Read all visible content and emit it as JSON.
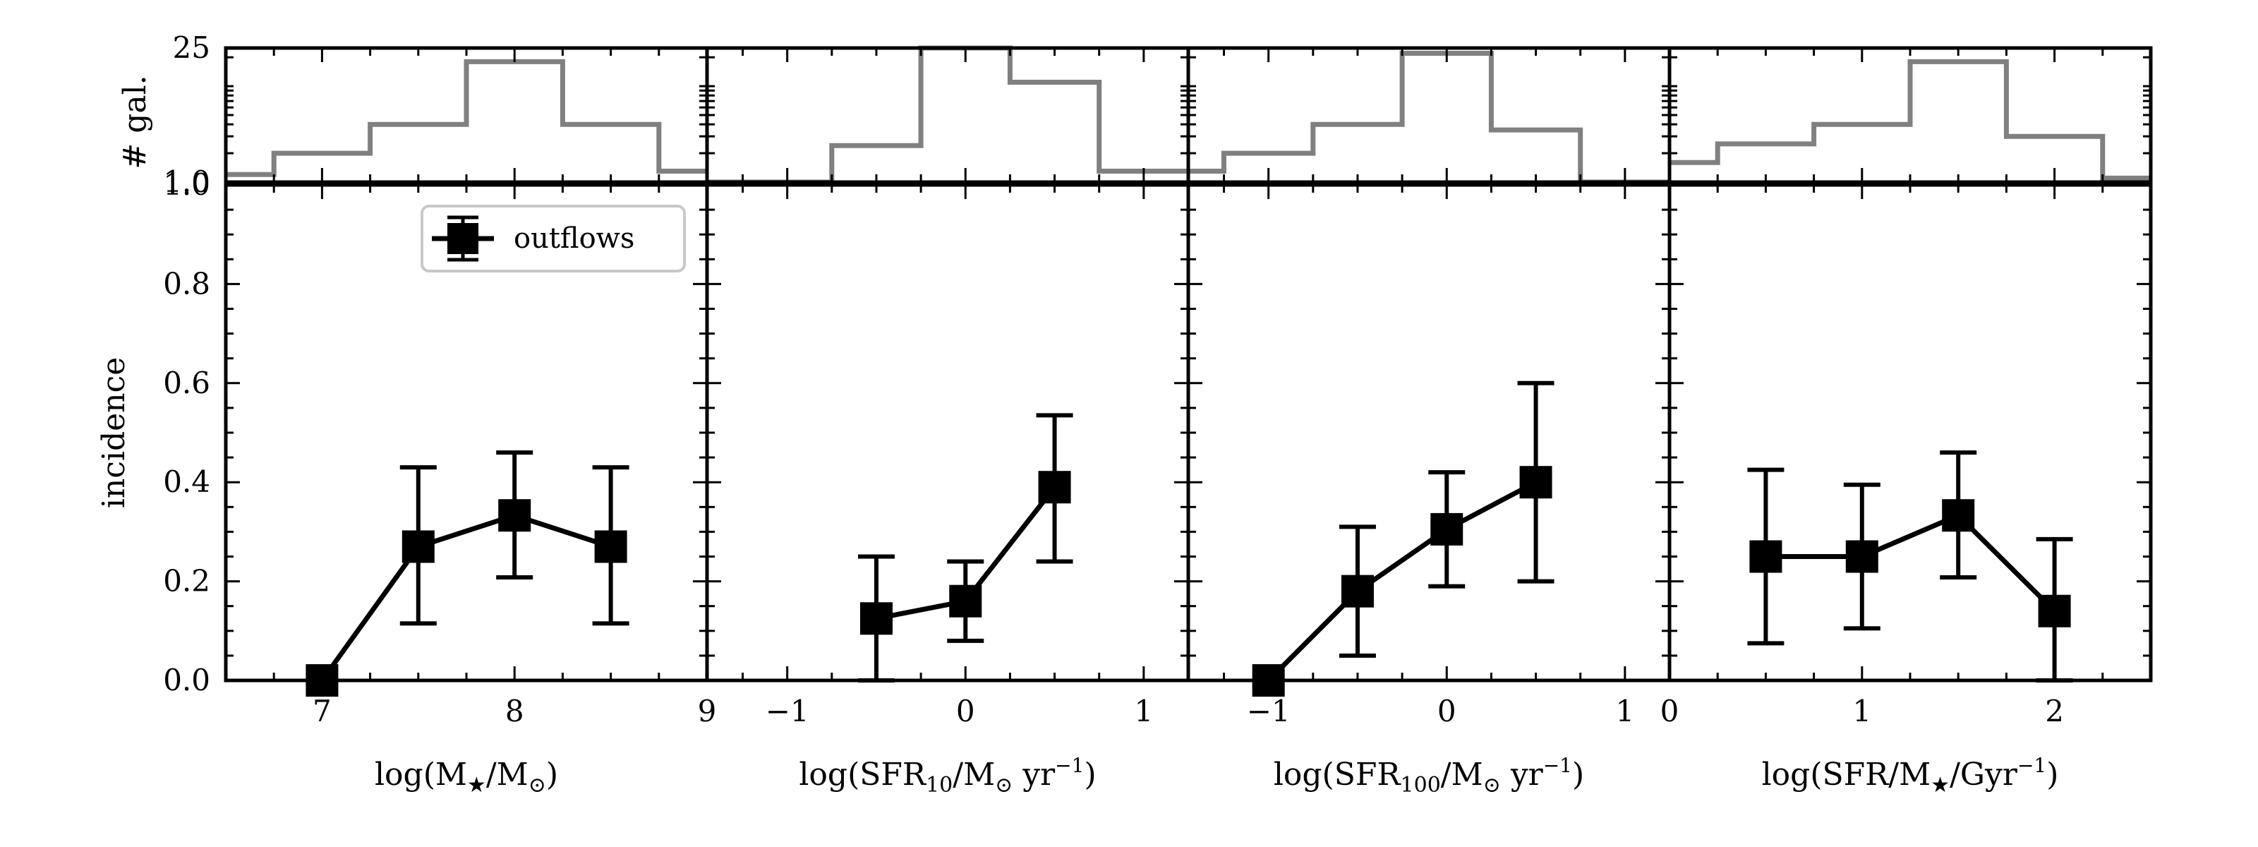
{
  "chart_data": {
    "type": "line",
    "shared_y": {
      "main_label": "incidence",
      "main_ylim": [
        0,
        1.0
      ],
      "main_ticks": [
        "0.0",
        "0.2",
        "0.4",
        "0.6",
        "0.8",
        "1.0"
      ],
      "hist_label": "# gal.",
      "hist_ylim": [
        1.0,
        25
      ],
      "hist_ticks": [
        "1.0",
        "25"
      ],
      "hist_scale": "log"
    },
    "legend": {
      "entry": "outflows",
      "placement": "top-right"
    },
    "colors": {
      "series": "#000000",
      "histogram": "#808080"
    },
    "panels": [
      {
        "xlabel_main": "log(M",
        "xlabel_sub": "★",
        "xlabel_mid": "/M",
        "xlabel_sub2": "⊙",
        "xlabel_end": ")",
        "xlim": [
          6.5,
          9.0
        ],
        "xticks": [
          7,
          8,
          9
        ],
        "xtick_labels": [
          "7",
          "8",
          "9"
        ],
        "series": {
          "name": "outflows",
          "x": [
            7.0,
            7.5,
            8.0,
            8.5
          ],
          "y": [
            0.0,
            0.27,
            0.333,
            0.27
          ],
          "yerr_low": [
            0.0,
            0.155,
            0.125,
            0.155
          ],
          "yerr_high": [
            0.0,
            0.16,
            0.127,
            0.16
          ]
        },
        "histogram": {
          "edges": [
            6.5,
            6.75,
            7.25,
            7.75,
            8.25,
            8.75,
            9.0
          ],
          "counts": [
            1.2,
            2,
            4,
            18,
            4,
            1.3
          ]
        }
      },
      {
        "xlabel_main": "log(SFR",
        "xlabel_sub": "10",
        "xlabel_mid": "/M",
        "xlabel_sub2": "⊙",
        "xlabel_end": " yr",
        "xlabel_sup": "−1",
        "xlabel_close": ")",
        "xlim": [
          -1.45,
          1.25
        ],
        "xticks": [
          -1,
          0,
          1
        ],
        "xtick_labels": [
          "−1",
          "0",
          "1"
        ],
        "series": {
          "name": "outflows",
          "x": [
            -0.5,
            0.0,
            0.5
          ],
          "y": [
            0.125,
            0.16,
            0.39
          ],
          "yerr_low": [
            0.125,
            0.08,
            0.15
          ],
          "yerr_high": [
            0.125,
            0.08,
            0.145
          ]
        },
        "histogram": {
          "edges": [
            -1.45,
            -0.75,
            -0.25,
            0.25,
            0.75,
            1.25
          ],
          "counts": [
            1.0,
            2.4,
            25,
            11,
            1.3
          ]
        }
      },
      {
        "xlabel_main": "log(SFR",
        "xlabel_sub": "100",
        "xlabel_mid": "/M",
        "xlabel_sub2": "⊙",
        "xlabel_end": " yr",
        "xlabel_sup": "−1",
        "xlabel_close": ")",
        "xlim": [
          -1.45,
          1.25
        ],
        "xticks": [
          -1,
          0,
          1
        ],
        "xtick_labels": [
          "−1",
          "0",
          "1"
        ],
        "series": {
          "name": "outflows",
          "x": [
            -1.0,
            -0.5,
            0.0,
            0.5
          ],
          "y": [
            0.0,
            0.18,
            0.305,
            0.4
          ],
          "yerr_low": [
            0.0,
            0.13,
            0.115,
            0.2
          ],
          "yerr_high": [
            0.0,
            0.13,
            0.115,
            0.2
          ]
        },
        "histogram": {
          "edges": [
            -1.45,
            -1.25,
            -0.75,
            -0.25,
            0.25,
            0.75,
            1.25
          ],
          "counts": [
            1.3,
            2,
            4,
            22,
            3.5,
            1.0
          ]
        }
      },
      {
        "xlabel_main": "log(SFR/M",
        "xlabel_sub": "★",
        "xlabel_mid": "/Gyr",
        "xlabel_sup": "−1",
        "xlabel_close": ")",
        "xlim": [
          0.0,
          2.5
        ],
        "xticks": [
          0,
          1,
          2
        ],
        "xtick_labels": [
          "0",
          "1",
          "2"
        ],
        "series": {
          "name": "outflows",
          "x": [
            0.5,
            1.0,
            1.5,
            2.0
          ],
          "y": [
            0.25,
            0.25,
            0.333,
            0.14
          ],
          "yerr_low": [
            0.175,
            0.145,
            0.125,
            0.14
          ],
          "yerr_high": [
            0.175,
            0.145,
            0.127,
            0.145
          ]
        },
        "histogram": {
          "edges": [
            0.0,
            0.25,
            0.75,
            1.25,
            1.75,
            2.25,
            2.5
          ],
          "counts": [
            1.6,
            2.5,
            4,
            18,
            3,
            1.1
          ]
        }
      }
    ]
  }
}
